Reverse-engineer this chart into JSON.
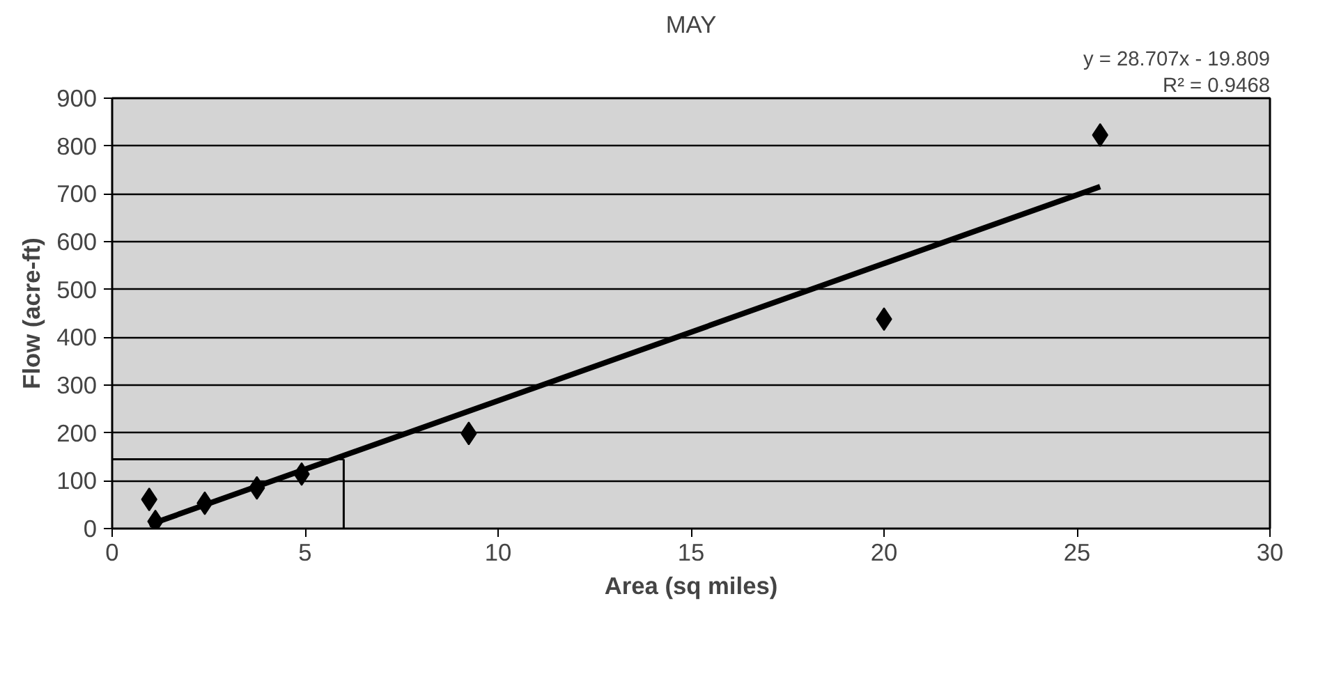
{
  "chart_data": {
    "type": "scatter",
    "title": "MAY",
    "xlabel": "Area (sq miles)",
    "ylabel": "Flow (acre-ft)",
    "x": [
      0.96,
      1.12,
      2.4,
      3.75,
      4.91,
      9.24,
      20.0,
      25.6
    ],
    "series": [
      {
        "color": "#000000",
        "marker": "diamond",
        "values": [
          61,
          15,
          53,
          85,
          114,
          199,
          438,
          823
        ]
      },
      {
        "type": "line",
        "color": "#000000",
        "x": [
          0.96,
          25.6
        ],
        "values": [
          8,
          715
        ],
        "line_style": "solid"
      }
    ],
    "annotations": [
      "y = 28.707x - 19.809",
      "R² = 0.9468"
    ],
    "ref_lines": [
      {
        "axis": "x",
        "value": 6,
        "color": "#000000"
      },
      {
        "axis": "y",
        "value": 145,
        "color": "#000000"
      }
    ],
    "xlim": [
      0,
      30
    ],
    "xticks": [
      0,
      5,
      10,
      15,
      20,
      25,
      30
    ],
    "ylim": [
      0,
      900
    ],
    "yticks": [
      0,
      100,
      200,
      300,
      400,
      500,
      600,
      700,
      800,
      900
    ],
    "grid": "y"
  }
}
